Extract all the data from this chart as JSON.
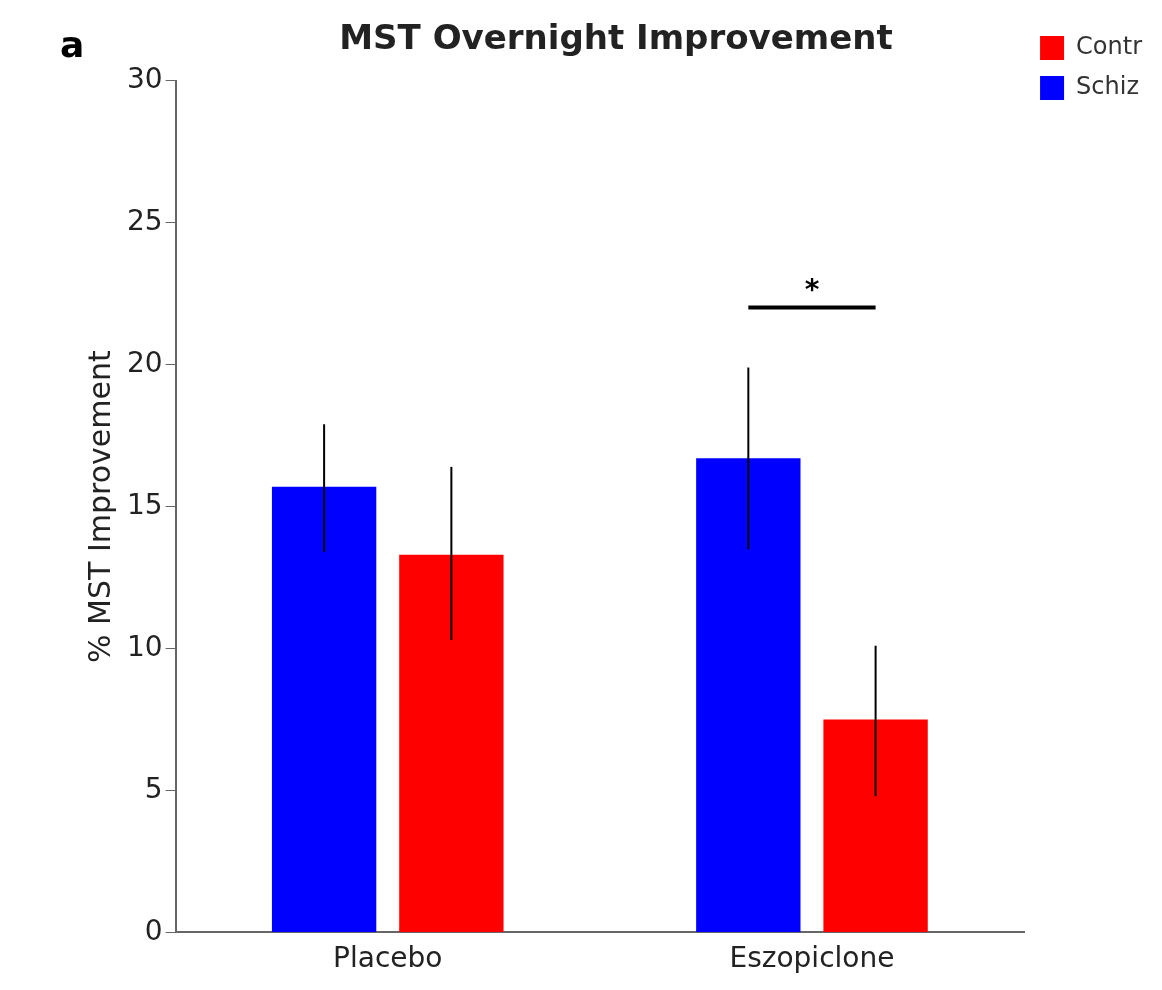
{
  "chart_data": {
    "type": "bar",
    "title": "MST Overnight Improvement",
    "ylabel": "% MST Improvement",
    "categories": [
      "Placebo",
      "Eszopiclone"
    ],
    "series": [
      {
        "name": "Schiz",
        "color": "#0000ff",
        "values": [
          15.7,
          16.7
        ],
        "errors": [
          [
            13.4,
            17.9
          ],
          [
            13.5,
            19.9
          ]
        ]
      },
      {
        "name": "Contr",
        "color": "#ff0000",
        "values": [
          13.3,
          7.5
        ],
        "errors": [
          [
            10.3,
            16.4
          ],
          [
            4.8,
            10.1
          ]
        ]
      }
    ],
    "ylim": [
      0,
      30
    ],
    "yticks": [
      0,
      5,
      10,
      15,
      20,
      25,
      30
    ],
    "grid": false,
    "legend": "top right",
    "annotations": [
      "a",
      "*"
    ]
  }
}
